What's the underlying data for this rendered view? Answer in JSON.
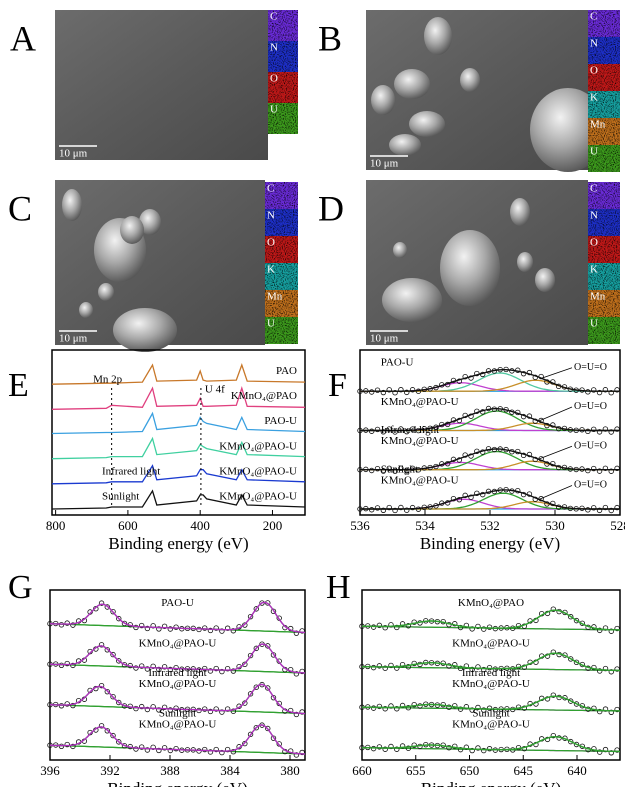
{
  "panels": [
    {
      "letter": "A",
      "scale_bar": "10 μm",
      "maps": [
        {
          "element": "C",
          "color": "#6a2bd8"
        },
        {
          "element": "N",
          "color": "#1d2fc8"
        },
        {
          "element": "O",
          "color": "#c01818"
        },
        {
          "element": "U",
          "color": "#3c9a1c"
        }
      ]
    },
    {
      "letter": "B",
      "scale_bar": "10 μm",
      "maps": [
        {
          "element": "C",
          "color": "#6a2bd8"
        },
        {
          "element": "N",
          "color": "#1d2fc8"
        },
        {
          "element": "O",
          "color": "#c01818"
        },
        {
          "element": "K",
          "color": "#16a0a0"
        },
        {
          "element": "Mn",
          "color": "#c0701c"
        },
        {
          "element": "U",
          "color": "#3c9a1c"
        }
      ]
    },
    {
      "letter": "C",
      "scale_bar": "10 μm",
      "maps": [
        {
          "element": "C",
          "color": "#6a2bd8"
        },
        {
          "element": "N",
          "color": "#1d2fc8"
        },
        {
          "element": "O",
          "color": "#c01818"
        },
        {
          "element": "K",
          "color": "#16a0a0"
        },
        {
          "element": "Mn",
          "color": "#c0701c"
        },
        {
          "element": "U",
          "color": "#3c9a1c"
        }
      ]
    },
    {
      "letter": "D",
      "scale_bar": "10 μm",
      "maps": [
        {
          "element": "C",
          "color": "#6a2bd8"
        },
        {
          "element": "N",
          "color": "#1d2fc8"
        },
        {
          "element": "O",
          "color": "#c01818"
        },
        {
          "element": "K",
          "color": "#16a0a0"
        },
        {
          "element": "Mn",
          "color": "#c0701c"
        },
        {
          "element": "U",
          "color": "#3c9a1c"
        }
      ]
    }
  ],
  "chart_data": [
    {
      "type": "line",
      "letter": "E",
      "xlabel": "Binding energy (eV)",
      "xlim": [
        810,
        110
      ],
      "xticks": [
        800,
        600,
        400,
        200
      ],
      "x": [
        810,
        660,
        645,
        560,
        532,
        520,
        410,
        400,
        392,
        382,
        300,
        285,
        270,
        110
      ],
      "annotations": [
        {
          "text": "Mn 2p",
          "x": 645
        },
        {
          "text": "U 4f",
          "x": 398
        }
      ],
      "series": [
        {
          "name": "PAO",
          "color": "#c8782a",
          "values": [
            0.05,
            0.1,
            0.1,
            0.15,
            1.0,
            0.2,
            0.25,
            0.7,
            0.25,
            0.2,
            0.25,
            1.0,
            0.2,
            0.15
          ]
        },
        {
          "name": "KMnO₄@PAO",
          "color": "#e0407f",
          "values": [
            0.05,
            0.1,
            0.25,
            0.15,
            1.1,
            0.2,
            0.25,
            0.6,
            0.2,
            0.2,
            0.25,
            1.1,
            0.2,
            0.15
          ]
        },
        {
          "name": "PAO-U",
          "color": "#3aa0e0",
          "values": [
            0.1,
            0.15,
            0.15,
            0.2,
            1.1,
            0.3,
            0.5,
            0.9,
            0.7,
            0.6,
            0.3,
            0.9,
            0.3,
            0.2
          ]
        },
        {
          "name": "KMnO₄@PAO-U",
          "color": "#40d0a0",
          "values": [
            0.1,
            0.15,
            0.2,
            0.2,
            1.1,
            0.3,
            0.5,
            0.8,
            0.7,
            0.6,
            0.3,
            0.9,
            0.3,
            0.2
          ]
        },
        {
          "name": "KMnO₄@PAO-U",
          "condition": "Infrared light",
          "color": "#1a3ad0",
          "values": [
            0.1,
            0.15,
            0.2,
            0.2,
            1.0,
            0.3,
            0.5,
            0.8,
            0.8,
            0.6,
            0.3,
            0.8,
            0.3,
            0.2
          ]
        },
        {
          "name": "KMnO₄@PAO-U",
          "condition": "Sunlight",
          "color": "#111111",
          "values": [
            0.1,
            0.15,
            0.2,
            0.2,
            1.0,
            0.3,
            0.5,
            0.8,
            0.8,
            0.6,
            0.3,
            0.8,
            0.3,
            0.2
          ]
        }
      ]
    },
    {
      "type": "fit",
      "letter": "F",
      "xlabel": "Binding energy (eV)",
      "xlim": [
        536,
        528
      ],
      "xticks": [
        536,
        534,
        532,
        530,
        528
      ],
      "fit_color": "#111111",
      "baseline_color": "#2aa0e0",
      "spectra": [
        {
          "label": [
            "PAO-U"
          ],
          "annotation": "O=U=O",
          "peaks": [
            {
              "center": 532.9,
              "height": 0.35,
              "width": 0.6,
              "color": "#c040d0"
            },
            {
              "center": 531.7,
              "height": 0.75,
              "width": 0.65,
              "color": "#50c8a0"
            },
            {
              "center": 530.6,
              "height": 0.45,
              "width": 0.6,
              "color": "#c8902a"
            }
          ]
        },
        {
          "label": [
            "KMnO₄@PAO-U"
          ],
          "annotation": "O=U=O",
          "peaks": [
            {
              "center": 532.9,
              "height": 0.3,
              "width": 0.6,
              "color": "#c040d0"
            },
            {
              "center": 531.8,
              "height": 0.8,
              "width": 0.65,
              "color": "#30a030"
            },
            {
              "center": 530.7,
              "height": 0.3,
              "width": 0.55,
              "color": "#c8902a"
            }
          ]
        },
        {
          "label": [
            "Infrared light",
            "KMnO₄@PAO-U"
          ],
          "annotation": "O=U=O",
          "peaks": [
            {
              "center": 532.9,
              "height": 0.3,
              "width": 0.6,
              "color": "#c040d0"
            },
            {
              "center": 531.8,
              "height": 0.75,
              "width": 0.65,
              "color": "#30a030"
            },
            {
              "center": 530.7,
              "height": 0.35,
              "width": 0.55,
              "color": "#c8902a"
            }
          ]
        },
        {
          "label": [
            "Sunlight",
            "KMnO₄@PAO-U"
          ],
          "annotation": "O=U=O",
          "peaks": [
            {
              "center": 532.8,
              "height": 0.4,
              "width": 0.6,
              "color": "#c040d0"
            },
            {
              "center": 531.6,
              "height": 0.65,
              "width": 0.6,
              "color": "#30a030"
            },
            {
              "center": 530.7,
              "height": 0.3,
              "width": 0.55,
              "color": "#c8902a"
            }
          ]
        }
      ]
    },
    {
      "type": "fit",
      "letter": "G",
      "xlabel": "Binding energy (eV)",
      "xlim": [
        396,
        379
      ],
      "xticks": [
        396,
        392,
        388,
        384,
        380
      ],
      "fit_color": "#b030c0",
      "baseline_color": "#30a030",
      "spectra": [
        {
          "label": [
            "PAO-U"
          ],
          "background": [
            0.35,
            0.0
          ],
          "peaks": [
            {
              "center": 392.5,
              "height": 0.85,
              "width": 0.75,
              "color": "#30a030"
            },
            {
              "center": 381.7,
              "height": 1.15,
              "width": 0.75,
              "color": "#30a030"
            }
          ]
        },
        {
          "label": [
            "KMnO₄@PAO-U"
          ],
          "background": [
            0.35,
            0.0
          ],
          "peaks": [
            {
              "center": 392.6,
              "height": 0.8,
              "width": 0.75,
              "color": "#30a030"
            },
            {
              "center": 381.8,
              "height": 1.1,
              "width": 0.75,
              "color": "#30a030"
            }
          ]
        },
        {
          "label": [
            "Infrared light",
            "KMnO₄@PAO-U"
          ],
          "background": [
            0.35,
            0.0
          ],
          "peaks": [
            {
              "center": 392.7,
              "height": 0.8,
              "width": 0.75,
              "color": "#30a030"
            },
            {
              "center": 381.9,
              "height": 1.1,
              "width": 0.75,
              "color": "#30a030"
            }
          ]
        },
        {
          "label": [
            "Sunlight",
            "KMnO₄@PAO-U"
          ],
          "background": [
            0.35,
            0.0
          ],
          "peaks": [
            {
              "center": 392.6,
              "height": 0.8,
              "width": 0.75,
              "color": "#30a030"
            },
            {
              "center": 381.9,
              "height": 1.1,
              "width": 0.75,
              "color": "#30a030"
            }
          ]
        }
      ]
    },
    {
      "type": "fit",
      "letter": "H",
      "xlabel": "Binding energy (eV)",
      "xlim": [
        660,
        636
      ],
      "xticks": [
        660,
        655,
        650,
        645,
        640
      ],
      "fit_color": "#30a030",
      "baseline_color": "#b030c0",
      "spectra": [
        {
          "label": [
            "KMnO₄@PAO"
          ],
          "background": [
            0.25,
            0.1
          ],
          "peaks": [
            {
              "center": 653.5,
              "height": 0.25,
              "width": 1.6,
              "color": "#30a030"
            },
            {
              "center": 642.0,
              "height": 0.75,
              "width": 1.6,
              "color": "#30a030"
            }
          ]
        },
        {
          "label": [
            "KMnO₄@PAO-U"
          ],
          "background": [
            0.25,
            0.1
          ],
          "peaks": [
            {
              "center": 653.5,
              "height": 0.2,
              "width": 1.6,
              "color": "#30a030"
            },
            {
              "center": 642.0,
              "height": 0.65,
              "width": 1.6,
              "color": "#30a030"
            }
          ]
        },
        {
          "label": [
            "Infrared light",
            "KMnO₄@PAO-U"
          ],
          "background": [
            0.25,
            0.1
          ],
          "peaks": [
            {
              "center": 653.5,
              "height": 0.15,
              "width": 1.6,
              "color": "#30a030"
            },
            {
              "center": 642.0,
              "height": 0.55,
              "width": 1.6,
              "color": "#30a030"
            }
          ]
        },
        {
          "label": [
            "Sunlight",
            "KMnO₄@PAO-U"
          ],
          "background": [
            0.25,
            0.1
          ],
          "peaks": [
            {
              "center": 653.5,
              "height": 0.15,
              "width": 1.6,
              "color": "#30a030"
            },
            {
              "center": 642.0,
              "height": 0.55,
              "width": 1.6,
              "color": "#30a030"
            }
          ]
        }
      ]
    }
  ]
}
